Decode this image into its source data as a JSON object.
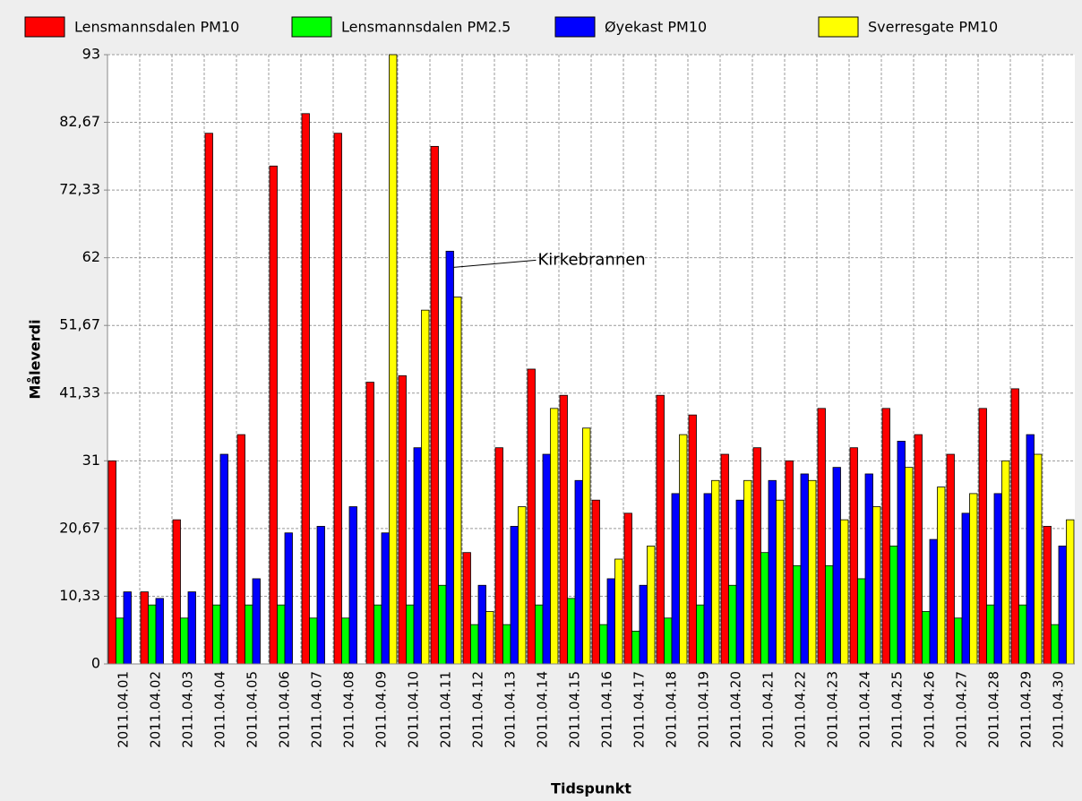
{
  "chart_data": {
    "type": "bar",
    "x_label": "Tidspunkt",
    "y_label": "Måleverdi",
    "categories": [
      "2011.04.01",
      "2011.04.02",
      "2011.04.03",
      "2011.04.04",
      "2011.04.05",
      "2011.04.06",
      "2011.04.07",
      "2011.04.08",
      "2011.04.09",
      "2011.04.10",
      "2011.04.11",
      "2011.04.12",
      "2011.04.13",
      "2011.04.14",
      "2011.04.15",
      "2011.04.16",
      "2011.04.17",
      "2011.04.18",
      "2011.04.19",
      "2011.04.20",
      "2011.04.21",
      "2011.04.22",
      "2011.04.23",
      "2011.04.24",
      "2011.04.25",
      "2011.04.26",
      "2011.04.27",
      "2011.04.28",
      "2011.04.29",
      "2011.04.30"
    ],
    "series": [
      {
        "name": "Lensmannsdalen PM10",
        "color": "#ff0000",
        "values": [
          31,
          11,
          22,
          81,
          35,
          76,
          84,
          81,
          43,
          44,
          79,
          17,
          33,
          45,
          41,
          25,
          23,
          41,
          38,
          32,
          33,
          31,
          39,
          33,
          39,
          35,
          32,
          39,
          42,
          21
        ]
      },
      {
        "name": "Lensmannsdalen PM2.5",
        "color": "#00ff00",
        "values": [
          7,
          9,
          7,
          9,
          9,
          9,
          7,
          7,
          9,
          9,
          12,
          6,
          6,
          9,
          10,
          6,
          5,
          7,
          9,
          12,
          17,
          15,
          15,
          13,
          18,
          8,
          7,
          9,
          9,
          6
        ]
      },
      {
        "name": "Øyekast PM10",
        "color": "#0000ff",
        "values": [
          11,
          10,
          11,
          32,
          13,
          20,
          21,
          24,
          20,
          33,
          63,
          12,
          21,
          32,
          28,
          13,
          12,
          26,
          26,
          25,
          28,
          29,
          30,
          29,
          34,
          19,
          23,
          26,
          35,
          18
        ]
      },
      {
        "name": "Sverresgate PM10",
        "color": "#ffff00",
        "values": [
          null,
          null,
          null,
          null,
          null,
          null,
          null,
          null,
          93,
          54,
          56,
          8,
          24,
          39,
          36,
          16,
          18,
          35,
          28,
          28,
          25,
          28,
          22,
          24,
          30,
          27,
          26,
          31,
          32,
          22
        ]
      }
    ],
    "ylim": [
      0,
      93
    ],
    "yticks": [
      0,
      {
        "value": 10.33,
        "label": "10,33"
      },
      {
        "value": 20.67,
        "label": "20,67"
      },
      31,
      {
        "value": 41.33,
        "label": "41,33"
      },
      {
        "value": 51.67,
        "label": "51,67"
      },
      62,
      {
        "value": 72.33,
        "label": "72,33"
      },
      {
        "value": 82.67,
        "label": "82,67"
      },
      93
    ],
    "grid": true,
    "annotation": {
      "text": "Kirkebrannen",
      "series": 2,
      "index": 10
    }
  }
}
